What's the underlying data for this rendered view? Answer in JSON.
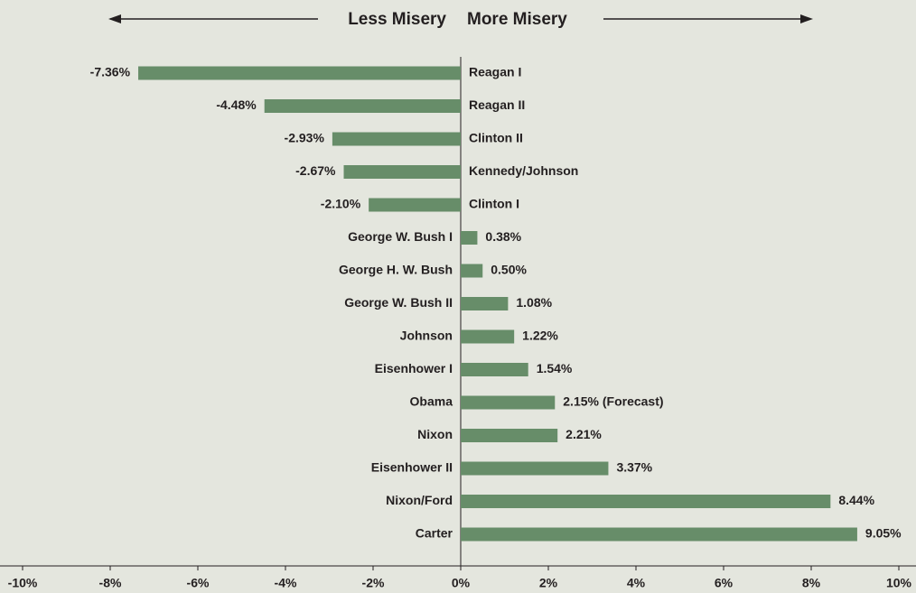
{
  "chart_data": {
    "type": "hbar",
    "left_label": "Less Misery",
    "right_label": "More Misery",
    "categories": [
      "Reagan I",
      "Reagan II",
      "Clinton II",
      "Kennedy/Johnson",
      "Clinton I",
      "George W. Bush I",
      "George H. W. Bush",
      "George W. Bush II",
      "Johnson",
      "Eisenhower I",
      "Obama",
      "Nixon",
      "Eisenhower II",
      "Nixon/Ford",
      "Carter"
    ],
    "values": [
      -7.36,
      -4.48,
      -2.93,
      -2.67,
      -2.1,
      0.38,
      0.5,
      1.08,
      1.22,
      1.54,
      2.15,
      2.21,
      3.37,
      8.44,
      9.05
    ],
    "value_labels": [
      "-7.36%",
      "-4.48%",
      "-2.93%",
      "-2.67%",
      "-2.10%",
      "0.38%",
      "0.50%",
      "1.08%",
      "1.22%",
      "1.54%",
      "2.15% (Forecast)",
      "2.21%",
      "3.37%",
      "8.44%",
      "9.05%"
    ],
    "color": "#678d69",
    "xlim": [
      -10,
      10
    ],
    "xticks": [
      {
        "value": -10,
        "label": "-10%"
      },
      {
        "value": -8,
        "label": "-8%"
      },
      {
        "value": -6,
        "label": "-6%"
      },
      {
        "value": -4,
        "label": "-4%"
      },
      {
        "value": -2,
        "label": "-2%"
      },
      {
        "value": 0,
        "label": "0%"
      },
      {
        "value": 2,
        "label": "2%"
      },
      {
        "value": 4,
        "label": "4%"
      },
      {
        "value": 6,
        "label": "6%"
      },
      {
        "value": 8,
        "label": "8%"
      },
      {
        "value": 10,
        "label": "10%"
      }
    ]
  }
}
